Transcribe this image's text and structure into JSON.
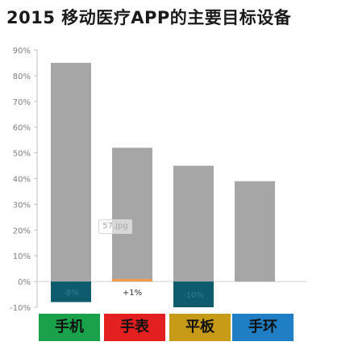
{
  "title": "2015 移动医疗APP的主要目标设备",
  "watermark": "57.jpg",
  "colors": {
    "bar_main": "#a6a6a6",
    "bar_change": "#0e5b6e",
    "bar_change_small": "#f2994a",
    "axis": "#bfbfbf",
    "tick_text": "#7f7f7f"
  },
  "legend": [
    {
      "label": "手机",
      "color": "#19a24a"
    },
    {
      "label": "手表",
      "color": "#e31f1f"
    },
    {
      "label": "平板",
      "color": "#c79b17"
    },
    {
      "label": "手环",
      "color": "#1f7ec4"
    }
  ],
  "chart_data": {
    "type": "bar",
    "title": "2015 移动医疗APP的主要目标设备",
    "categories": [
      "手机",
      "手表",
      "平板",
      "手环"
    ],
    "ylim": [
      -10,
      90
    ],
    "yticks": [
      "-10%",
      "0%",
      "10%",
      "20%",
      "30%",
      "40%",
      "50%",
      "60%",
      "70%",
      "80%",
      "90%"
    ],
    "series": [
      {
        "values": [
          85,
          52,
          45,
          39
        ]
      },
      {
        "values": [
          -8,
          1,
          -10,
          0
        ]
      }
    ],
    "data_labels": [
      "-8%",
      "+1%",
      "-10%",
      ""
    ],
    "grid": false,
    "legend_placement": "bottom"
  }
}
